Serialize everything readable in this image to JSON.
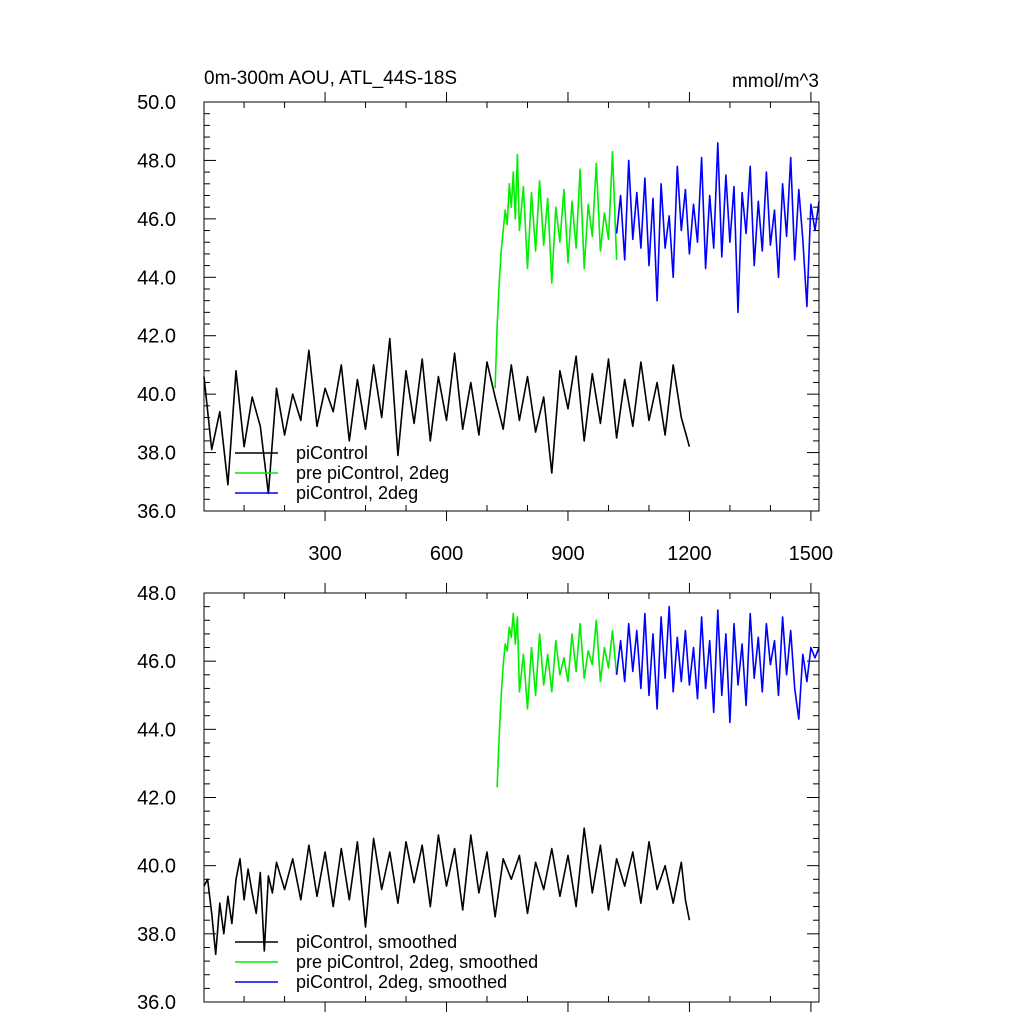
{
  "chart_data": [
    {
      "type": "line",
      "title_left": "0m-300m AOU, ATL_44S-18S",
      "title_right": "mmol/m^3",
      "xlim": [
        1,
        1520
      ],
      "ylim": [
        36.0,
        50.0
      ],
      "yticks": [
        36.0,
        38.0,
        40.0,
        42.0,
        44.0,
        46.0,
        48.0,
        50.0
      ],
      "ytick_labels": [
        "36.0",
        "38.0",
        "40.0",
        "42.0",
        "44.0",
        "46.0",
        "48.0",
        "50.0"
      ],
      "xticks": [
        300,
        600,
        900,
        1200,
        1500
      ],
      "xtick_labels": [
        "300",
        "600",
        "900",
        "1200",
        "1500"
      ],
      "legend_position": "bottom-left",
      "series": [
        {
          "name": "piControl",
          "color": "#000000",
          "x": [
            1,
            20,
            40,
            60,
            80,
            100,
            120,
            140,
            160,
            180,
            200,
            220,
            240,
            260,
            280,
            300,
            320,
            340,
            360,
            380,
            400,
            420,
            440,
            460,
            480,
            500,
            520,
            540,
            560,
            580,
            600,
            620,
            640,
            660,
            680,
            700,
            720,
            740,
            760,
            780,
            800,
            820,
            840,
            860,
            880,
            900,
            920,
            940,
            960,
            980,
            1000,
            1020,
            1040,
            1060,
            1080,
            1100,
            1120,
            1140,
            1160,
            1180,
            1190,
            1200
          ],
          "y": [
            40.6,
            38.1,
            39.4,
            36.9,
            40.8,
            38.2,
            39.9,
            38.9,
            36.6,
            40.2,
            38.6,
            40.0,
            39.1,
            41.5,
            38.9,
            40.2,
            39.4,
            41.0,
            38.4,
            40.5,
            38.8,
            41.0,
            39.2,
            41.9,
            37.9,
            40.8,
            39.0,
            41.2,
            38.4,
            40.6,
            39.1,
            41.4,
            38.8,
            40.4,
            38.6,
            41.1,
            39.9,
            38.8,
            41.0,
            39.1,
            40.6,
            38.7,
            39.9,
            37.3,
            40.8,
            39.5,
            41.3,
            38.4,
            40.7,
            39.0,
            41.2,
            38.5,
            40.5,
            38.9,
            41.1,
            39.1,
            40.4,
            38.6,
            41.0,
            39.2,
            38.7,
            38.2
          ]
        },
        {
          "name": "pre piControl, 2deg",
          "color": "#00ee00",
          "x": [
            720,
            725,
            730,
            735,
            740,
            745,
            750,
            755,
            760,
            765,
            770,
            775,
            780,
            790,
            800,
            810,
            820,
            830,
            840,
            850,
            860,
            870,
            880,
            890,
            900,
            910,
            920,
            930,
            940,
            950,
            960,
            970,
            980,
            990,
            1000,
            1010,
            1020
          ],
          "y": [
            40.2,
            42.3,
            43.8,
            44.9,
            45.6,
            46.3,
            45.8,
            47.2,
            46.4,
            47.6,
            46.0,
            48.2,
            45.6,
            47.1,
            44.3,
            46.9,
            44.9,
            47.3,
            45.1,
            46.7,
            43.8,
            46.4,
            45.2,
            47.0,
            44.5,
            46.6,
            45.0,
            47.7,
            44.3,
            46.5,
            45.4,
            47.9,
            44.9,
            46.2,
            45.3,
            48.3,
            44.6
          ]
        },
        {
          "name": "piControl, 2deg",
          "color": "#0000ff",
          "x": [
            1020,
            1030,
            1040,
            1050,
            1060,
            1070,
            1080,
            1090,
            1100,
            1110,
            1120,
            1130,
            1140,
            1150,
            1160,
            1170,
            1180,
            1190,
            1200,
            1210,
            1220,
            1230,
            1240,
            1250,
            1260,
            1270,
            1280,
            1290,
            1300,
            1310,
            1320,
            1330,
            1340,
            1350,
            1360,
            1370,
            1380,
            1390,
            1400,
            1410,
            1420,
            1430,
            1440,
            1450,
            1460,
            1470,
            1480,
            1490,
            1500,
            1510,
            1520
          ],
          "y": [
            45.5,
            46.8,
            44.6,
            48.0,
            45.3,
            46.9,
            45.0,
            47.4,
            44.4,
            46.7,
            43.2,
            47.2,
            45.0,
            46.1,
            44.0,
            47.8,
            45.6,
            47.0,
            44.8,
            46.5,
            45.2,
            48.1,
            44.3,
            46.8,
            45.0,
            48.6,
            44.7,
            47.5,
            45.2,
            47.1,
            42.8,
            46.9,
            45.5,
            47.8,
            44.4,
            46.6,
            44.9,
            47.6,
            45.1,
            46.3,
            44.0,
            47.2,
            45.4,
            48.1,
            44.6,
            47.0,
            45.3,
            43.0,
            46.5,
            45.6,
            46.6
          ]
        }
      ]
    },
    {
      "type": "line",
      "xlim": [
        1,
        1520
      ],
      "ylim": [
        36.0,
        48.0
      ],
      "yticks": [
        36.0,
        38.0,
        40.0,
        42.0,
        44.0,
        46.0,
        48.0
      ],
      "ytick_labels": [
        "36.0",
        "38.0",
        "40.0",
        "42.0",
        "44.0",
        "46.0",
        "48.0"
      ],
      "xticks": [
        300,
        600,
        900,
        1200,
        1500
      ],
      "legend_position": "bottom-left",
      "series": [
        {
          "name": "piControl, smoothed",
          "color": "#000000",
          "x": [
            1,
            10,
            20,
            30,
            40,
            50,
            60,
            70,
            80,
            90,
            100,
            110,
            120,
            130,
            140,
            150,
            160,
            170,
            180,
            200,
            220,
            240,
            260,
            280,
            300,
            320,
            340,
            360,
            380,
            400,
            420,
            440,
            460,
            480,
            500,
            520,
            540,
            560,
            580,
            600,
            620,
            640,
            660,
            680,
            700,
            720,
            740,
            760,
            780,
            800,
            820,
            840,
            860,
            880,
            900,
            920,
            940,
            960,
            980,
            1000,
            1020,
            1040,
            1060,
            1080,
            1100,
            1120,
            1140,
            1160,
            1180,
            1190,
            1200
          ],
          "y": [
            39.4,
            39.6,
            38.6,
            37.4,
            38.9,
            38.0,
            39.1,
            38.3,
            39.6,
            40.2,
            39.0,
            39.9,
            39.2,
            38.6,
            39.8,
            37.5,
            39.7,
            39.2,
            40.1,
            39.3,
            40.2,
            39.0,
            40.6,
            39.1,
            40.4,
            38.8,
            40.5,
            39.0,
            40.7,
            38.2,
            40.8,
            39.3,
            40.4,
            38.9,
            40.7,
            39.5,
            40.6,
            38.8,
            40.9,
            39.4,
            40.5,
            38.7,
            40.9,
            39.2,
            40.4,
            38.5,
            40.2,
            39.6,
            40.3,
            38.6,
            40.1,
            39.3,
            40.5,
            39.1,
            40.3,
            38.8,
            41.1,
            39.2,
            40.6,
            38.7,
            40.2,
            39.4,
            40.4,
            38.9,
            40.7,
            39.3,
            40.0,
            38.9,
            40.1,
            39.0,
            38.4
          ]
        },
        {
          "name": "pre piControl, 2deg, smoothed",
          "color": "#00ee00",
          "x": [
            725,
            730,
            735,
            740,
            745,
            750,
            755,
            760,
            765,
            770,
            775,
            780,
            790,
            800,
            810,
            820,
            830,
            840,
            850,
            860,
            870,
            880,
            890,
            900,
            910,
            920,
            930,
            940,
            950,
            960,
            970,
            980,
            990,
            1000,
            1010,
            1020
          ],
          "y": [
            42.3,
            43.8,
            45.0,
            45.9,
            46.5,
            46.3,
            47.0,
            46.7,
            47.4,
            46.5,
            47.3,
            45.1,
            46.2,
            44.6,
            46.4,
            45.0,
            46.8,
            45.3,
            46.2,
            45.1,
            46.6,
            45.6,
            46.1,
            45.4,
            46.8,
            45.7,
            47.1,
            45.5,
            46.3,
            45.9,
            47.2,
            45.4,
            46.4,
            45.8,
            46.9,
            45.6
          ]
        },
        {
          "name": "piControl, 2deg, smoothed",
          "color": "#0000ff",
          "x": [
            1020,
            1030,
            1040,
            1050,
            1060,
            1070,
            1080,
            1090,
            1100,
            1110,
            1120,
            1130,
            1140,
            1150,
            1160,
            1170,
            1180,
            1190,
            1200,
            1210,
            1220,
            1230,
            1240,
            1250,
            1260,
            1270,
            1280,
            1290,
            1300,
            1310,
            1320,
            1330,
            1340,
            1350,
            1360,
            1370,
            1380,
            1390,
            1400,
            1410,
            1420,
            1430,
            1440,
            1450,
            1460,
            1470,
            1480,
            1490,
            1500,
            1510,
            1520
          ],
          "y": [
            45.6,
            46.6,
            45.4,
            47.1,
            45.7,
            46.9,
            45.2,
            47.4,
            45.0,
            46.8,
            44.6,
            47.3,
            45.5,
            47.6,
            45.1,
            46.7,
            45.4,
            46.9,
            45.3,
            46.4,
            44.9,
            47.3,
            45.2,
            46.6,
            44.5,
            47.5,
            45.0,
            46.8,
            44.2,
            47.1,
            45.3,
            46.5,
            44.7,
            47.4,
            45.5,
            46.7,
            45.1,
            47.1,
            45.9,
            46.6,
            45.0,
            47.3,
            45.6,
            46.9,
            45.2,
            44.3,
            46.2,
            45.4,
            46.4,
            46.1,
            46.4
          ]
        }
      ]
    }
  ]
}
